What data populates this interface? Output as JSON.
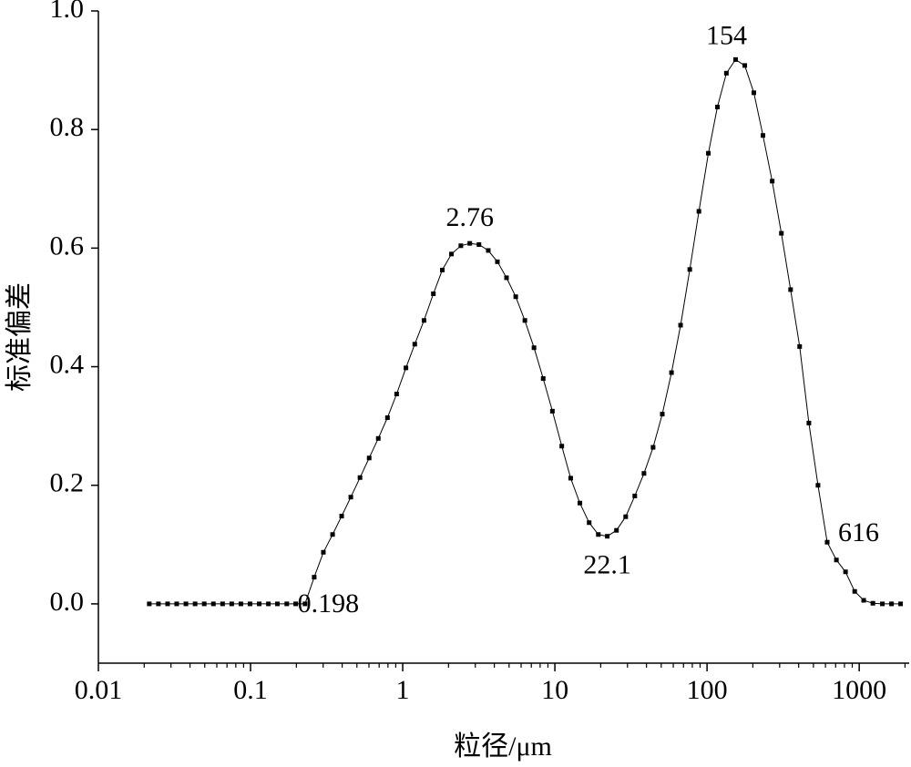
{
  "chart_data": {
    "type": "line",
    "x_label": "粒径/μm",
    "y_label": "标准偏差",
    "xscale": "log",
    "xlim": [
      0.01,
      2130
    ],
    "xticks": [
      0.01,
      0.1,
      1,
      10,
      100,
      1000
    ],
    "minor_ticks": true,
    "ylim": [
      -0.1,
      1.0
    ],
    "yticks": [
      {
        "value": 0,
        "label": "0.0"
      },
      0.2,
      0.4,
      0.6,
      0.8,
      {
        "value": 1,
        "label": "1.0"
      }
    ],
    "series": [
      {
        "color": "#000000",
        "x": [
          0.0216,
          0.0248,
          0.0285,
          0.0327,
          0.0376,
          0.0432,
          0.0496,
          0.057,
          0.0655,
          0.0752,
          0.0864,
          0.0992,
          0.114,
          0.131,
          0.15,
          0.173,
          0.198,
          0.228,
          0.262,
          0.301,
          0.346,
          0.397,
          0.456,
          0.524,
          0.602,
          0.691,
          0.794,
          0.912,
          1.05,
          1.2,
          1.38,
          1.59,
          1.82,
          2.09,
          2.41,
          2.76,
          3.17,
          3.65,
          4.19,
          4.81,
          5.53,
          6.35,
          7.29,
          8.38,
          9.63,
          11.1,
          12.7,
          14.6,
          16.8,
          19.3,
          22.1,
          25.4,
          29.2,
          33.5,
          38.5,
          44.2,
          50.8,
          58.4,
          67.0,
          77.0,
          88.4,
          102,
          117,
          134,
          154,
          177,
          203,
          233,
          268,
          308,
          354,
          406,
          467,
          536,
          616,
          708,
          813,
          934,
          1070,
          1230,
          1420,
          1630,
          1870
        ],
        "values": [
          0,
          0,
          0,
          0,
          0,
          0,
          0,
          0,
          0,
          0,
          0,
          0,
          0,
          0,
          0,
          0,
          0,
          0,
          0.045,
          0.087,
          0.117,
          0.148,
          0.18,
          0.213,
          0.246,
          0.279,
          0.314,
          0.354,
          0.398,
          0.438,
          0.478,
          0.523,
          0.563,
          0.59,
          0.604,
          0.608,
          0.606,
          0.596,
          0.577,
          0.55,
          0.518,
          0.478,
          0.432,
          0.38,
          0.325,
          0.266,
          0.212,
          0.17,
          0.137,
          0.117,
          0.114,
          0.124,
          0.147,
          0.182,
          0.22,
          0.264,
          0.32,
          0.39,
          0.47,
          0.564,
          0.662,
          0.76,
          0.838,
          0.895,
          0.918,
          0.908,
          0.862,
          0.79,
          0.713,
          0.625,
          0.53,
          0.434,
          0.305,
          0.2,
          0.104,
          0.074,
          0.054,
          0.021,
          0.006,
          0.001,
          0,
          0,
          0
        ]
      }
    ],
    "annotations": [
      "0.198",
      "2.76",
      "22.1",
      "154",
      "616"
    ]
  }
}
